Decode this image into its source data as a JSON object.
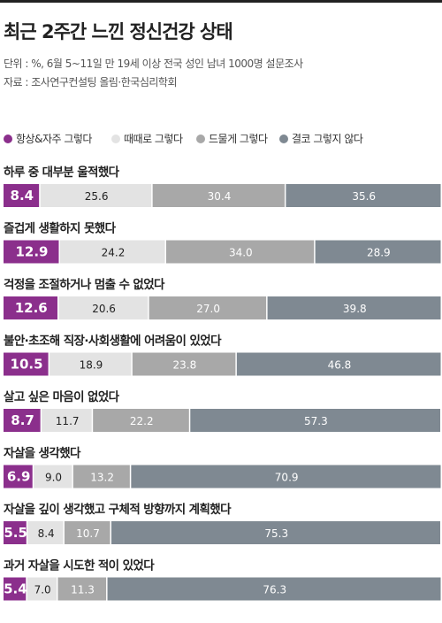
{
  "title": "최근 2주간 느낀 정신건강 상태",
  "unit_note": "단위 : %,  6월 5~11일 만 19세 이상 전국 성인 남녀 1000명 설문조사",
  "source_note": "자료 : 조사연구컨설팅 올림·한국심리학회",
  "colors": {
    "always": "#8b2f8c",
    "sometimes": "#e3e3e3",
    "rarely": "#a8a8a8",
    "never": "#7f8992"
  },
  "chart_data": {
    "type": "bar",
    "stacked": true,
    "orientation": "horizontal",
    "categories": [
      "하루 중 대부분 울적했다",
      "즐겁게 생활하지 못했다",
      "걱정을 조절하거나 멈출 수 없었다",
      "불안·초조해 직장·사회생활에 어려움이 있었다",
      "살고 싶은 마음이 없었다",
      "자살을 생각했다",
      "자살을 깊이 생각했고 구체적 방향까지 계획했다",
      "과거 자살을 시도한 적이 있었다"
    ],
    "series": [
      {
        "name": "항상&자주 그렇다",
        "values": [
          8.4,
          12.9,
          12.6,
          10.5,
          8.7,
          6.9,
          5.5,
          5.4
        ]
      },
      {
        "name": "때때로 그렇다",
        "values": [
          25.6,
          24.2,
          20.6,
          18.9,
          11.7,
          9.0,
          8.4,
          7.0
        ]
      },
      {
        "name": "드물게 그렇다",
        "values": [
          30.4,
          34.0,
          27.0,
          23.8,
          22.2,
          13.2,
          10.7,
          11.3
        ]
      },
      {
        "name": "결코 그렇지 않다",
        "values": [
          35.6,
          28.9,
          39.8,
          46.8,
          57.3,
          70.9,
          75.3,
          76.3
        ]
      }
    ],
    "labels": [
      [
        "8.4",
        "25.6",
        "30.4",
        "35.6"
      ],
      [
        "12.9",
        "24.2",
        "34.0",
        "28.9"
      ],
      [
        "12.6",
        "20.6",
        "27.0",
        "39.8"
      ],
      [
        "10.5",
        "18.9",
        "23.8",
        "46.8"
      ],
      [
        "8.7",
        "11.7",
        "22.2",
        "57.3"
      ],
      [
        "6.9",
        "9.0",
        "13.2",
        "70.9"
      ],
      [
        "5.5",
        "8.4",
        "10.7",
        "75.3"
      ],
      [
        "5.4",
        "7.0",
        "11.3",
        "76.3"
      ]
    ],
    "legend_position": "top-left",
    "grid": false
  }
}
